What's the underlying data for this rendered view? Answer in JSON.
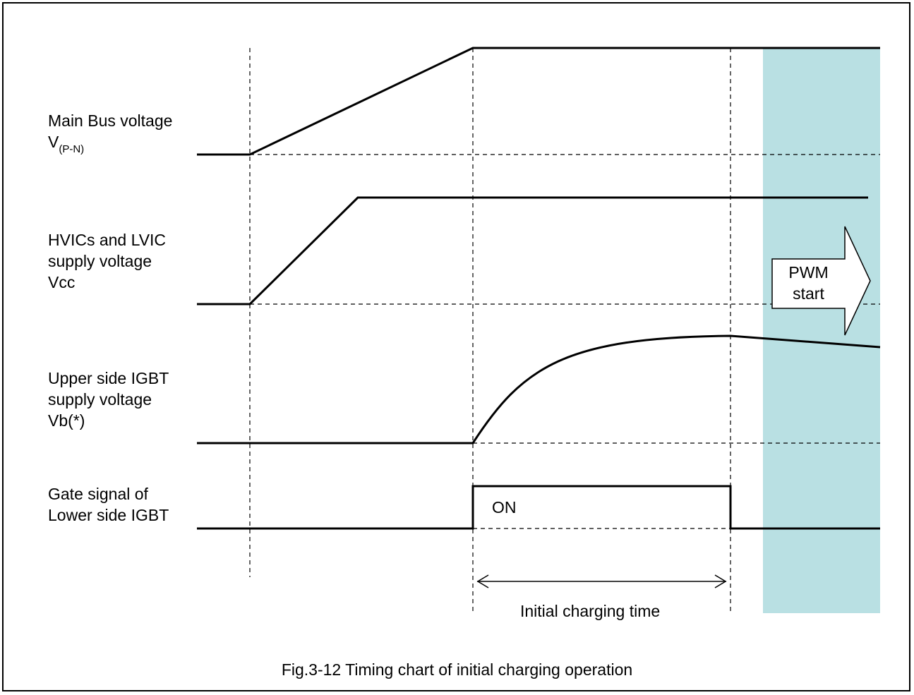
{
  "signals": [
    {
      "line1": "Main Bus voltage",
      "line2_main": "V",
      "line2_sub": "(P-N)"
    },
    {
      "line1": "HVICs and LVIC",
      "line2": "supply voltage",
      "line3": "Vcc"
    },
    {
      "line1": "Upper side IGBT",
      "line2": "supply voltage",
      "line3": "Vb(*)"
    },
    {
      "line1": "Gate signal of",
      "line2": "Lower side IGBT"
    }
  ],
  "gate_state": "ON",
  "interval_label": "Initial charging time",
  "pwm_arrow": {
    "line1": "PWM",
    "line2": "start"
  },
  "caption": "Fig.3-12 Timing chart of initial charging operation",
  "colors": {
    "pwm_region": "#b9e0e3",
    "line": "#000000"
  }
}
